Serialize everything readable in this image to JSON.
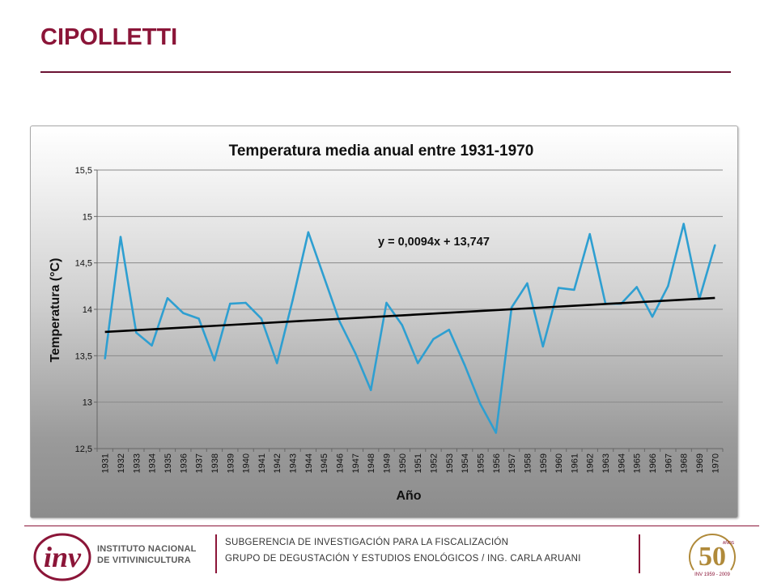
{
  "page": {
    "title": "CIPOLLETTI"
  },
  "colors": {
    "brand": "#8b1538",
    "series": "#2e9fd1",
    "trend": "#000000"
  },
  "chart_data": {
    "type": "line",
    "title": "Temperatura media anual entre 1931-1970",
    "xlabel": "Año",
    "ylabel": "Temperatura (°C)",
    "ylim": [
      12.5,
      15.5
    ],
    "yticks": [
      12.5,
      13,
      13.5,
      14,
      14.5,
      15,
      15.5
    ],
    "ytick_labels": [
      "12,5",
      "13",
      "13,5",
      "14",
      "14,5",
      "15",
      "15,5"
    ],
    "grid": true,
    "x": [
      "1931",
      "1932",
      "1933",
      "1934",
      "1935",
      "1936",
      "1937",
      "1938",
      "1939",
      "1940",
      "1941",
      "1942",
      "1943",
      "1944",
      "1945",
      "1946",
      "1947",
      "1948",
      "1949",
      "1950",
      "1951",
      "1952",
      "1953",
      "1954",
      "1955",
      "1956",
      "1957",
      "1958",
      "1959",
      "1960",
      "1961",
      "1962",
      "1963",
      "1964",
      "1965",
      "1966",
      "1967",
      "1968",
      "1969",
      "1970"
    ],
    "series": [
      {
        "name": "Temperatura media anual",
        "values": [
          13.47,
          14.78,
          13.75,
          13.61,
          14.12,
          13.96,
          13.9,
          13.45,
          14.06,
          14.07,
          13.9,
          13.42,
          14.1,
          14.83,
          14.35,
          13.87,
          13.53,
          13.13,
          14.07,
          13.83,
          13.42,
          13.68,
          13.78,
          13.4,
          12.98,
          12.67,
          14.02,
          14.28,
          13.6,
          14.23,
          14.21,
          14.81,
          14.06,
          14.06,
          14.24,
          13.92,
          14.25,
          14.92,
          14.11,
          14.69
        ]
      }
    ],
    "trendline": {
      "slope": 0.0094,
      "intercept": 13.747,
      "label": "y = 0,0094x + 13,747"
    }
  },
  "footer": {
    "line1": "SUBGERENCIA DE INVESTIGACIÓN PARA LA FISCALIZACIÓN",
    "line2": "GRUPO DE DEGUSTACIÓN Y ESTUDIOS ENOLÓGICOS / ING. CARLA ARUANI",
    "logo_line1": "INSTITUTO NACIONAL",
    "logo_line2": "DE VITIVINICULTURA",
    "logo_mark": "inv",
    "anniv_number": "50",
    "anniv_small": "AÑOS",
    "anniv_years": "INV 1959 - 2009"
  }
}
